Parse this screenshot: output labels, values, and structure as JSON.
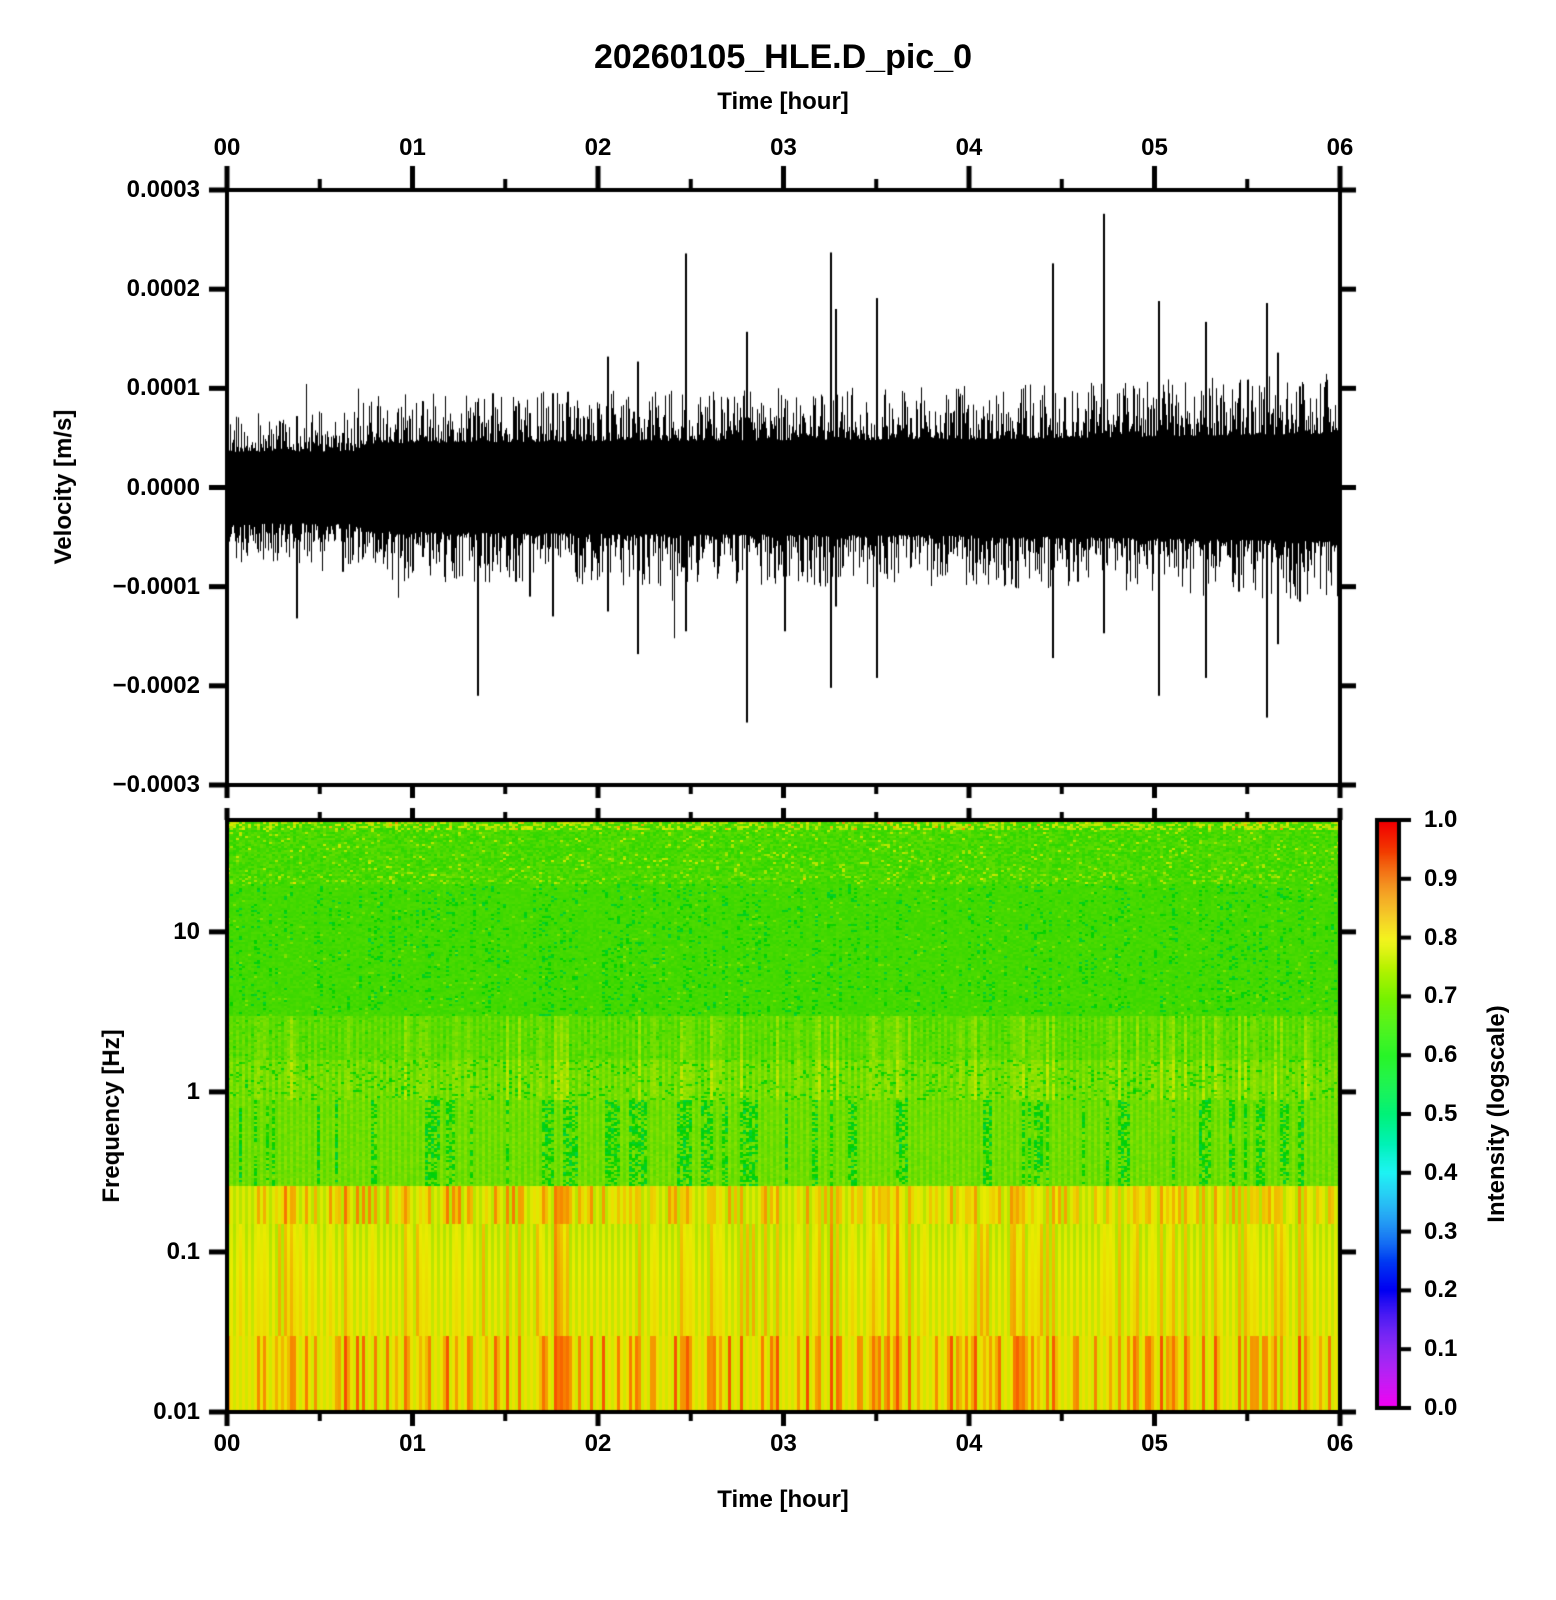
{
  "title": "20260105_HLE.D_pic_0",
  "waveform_plot": {
    "top_axis_title": "Time [hour]",
    "ylabel": "Velocity [m/s]",
    "x_ticks": [
      "00",
      "01",
      "02",
      "03",
      "04",
      "05",
      "06"
    ],
    "y_ticks": [
      "0.0003",
      "0.0002",
      "0.0001",
      "0.0000",
      "−0.0001",
      "−0.0002",
      "−0.0003"
    ]
  },
  "spectrogram_plot": {
    "xlabel": "Time [hour]",
    "ylabel": "Frequency [Hz]",
    "x_ticks": [
      "00",
      "01",
      "02",
      "03",
      "04",
      "05",
      "06"
    ],
    "y_ticks": [
      "10",
      "1",
      "0.1",
      "0.01"
    ]
  },
  "colorbar": {
    "label": "Intensity (logscale)",
    "ticks": [
      "1.0",
      "0.9",
      "0.8",
      "0.7",
      "0.6",
      "0.5",
      "0.4",
      "0.3",
      "0.2",
      "0.1",
      "0.0"
    ],
    "colormap_stops": [
      "#ff00ff",
      "#0000ff",
      "#00ffff",
      "#00ff00",
      "#ffff00",
      "#ff0000"
    ]
  },
  "chart_data": [
    {
      "type": "line",
      "title": "20260105_HLE.D_pic_0",
      "xlabel": "Time [hour]",
      "ylabel": "Velocity [m/s]",
      "xlim_hours": [
        0,
        6
      ],
      "ylim": [
        -0.0003,
        0.0003
      ],
      "x_tick_labels": [
        "00",
        "01",
        "02",
        "03",
        "04",
        "05",
        "06"
      ],
      "y_tick_values": [
        0.0003,
        0.0002,
        0.0001,
        0.0,
        -0.0001,
        -0.0002,
        -0.0003
      ],
      "line_color": "#000000",
      "description": "Continuous broadband seismic noise band of roughly ±0.00005 m/s with many short transient spikes up to ±0.00028 m/s",
      "noise_envelope_1e4": [
        [
          0,
          0.42
        ],
        [
          0.68,
          0.43
        ],
        [
          0.75,
          0.52
        ],
        [
          2.0,
          0.55
        ],
        [
          4.0,
          0.57
        ],
        [
          6.0,
          0.64
        ]
      ],
      "spikes_1e4": [
        [
          0.37,
          0.72,
          -1.32
        ],
        [
          0.62,
          0.55,
          -0.85
        ],
        [
          1.05,
          0.62,
          -0.7
        ],
        [
          1.35,
          0.5,
          -2.1
        ],
        [
          1.43,
          0.95,
          -0.75
        ],
        [
          1.55,
          0.82,
          -0.95
        ],
        [
          1.63,
          0.75,
          -1.1
        ],
        [
          1.75,
          0.95,
          -1.3
        ],
        [
          1.88,
          0.7,
          -0.9
        ],
        [
          2.05,
          1.32,
          -1.25
        ],
        [
          2.21,
          1.27,
          -1.68
        ],
        [
          2.47,
          2.36,
          -1.45
        ],
        [
          2.62,
          0.88,
          -0.75
        ],
        [
          2.8,
          1.57,
          -2.37
        ],
        [
          3.0,
          0.8,
          -1.45
        ],
        [
          3.1,
          0.72,
          -0.85
        ],
        [
          3.25,
          2.37,
          -2.02
        ],
        [
          3.28,
          1.8,
          -1.2
        ],
        [
          3.5,
          1.91,
          -1.92
        ],
        [
          3.68,
          0.7,
          -0.8
        ],
        [
          3.9,
          0.75,
          -0.65
        ],
        [
          4.1,
          0.68,
          -0.78
        ],
        [
          4.45,
          2.26,
          -1.72
        ],
        [
          4.58,
          0.8,
          -0.95
        ],
        [
          4.72,
          2.76,
          -1.47
        ],
        [
          5.02,
          1.88,
          -2.1
        ],
        [
          5.27,
          1.67,
          -1.92
        ],
        [
          5.45,
          0.9,
          -1.05
        ],
        [
          5.6,
          1.86,
          -2.32
        ],
        [
          5.66,
          1.36,
          -1.58
        ],
        [
          5.78,
          1.02,
          -1.15
        ]
      ]
    },
    {
      "type": "heatmap",
      "xlabel": "Time [hour]",
      "ylabel": "Frequency [Hz]",
      "x_range_hours": [
        0,
        6
      ],
      "y_range_hz": [
        0.01,
        50
      ],
      "y_scale": "log",
      "y_tick_values": [
        10,
        1,
        0.1,
        0.01
      ],
      "intensity_range": [
        0.0,
        1.0
      ],
      "colorbar_label": "Intensity (logscale)",
      "colormap": "rainbow: magenta(0.0) - blue(0.2) - cyan(0.4) - green(0.6) - yellow(0.8) - red(1.0)",
      "bands": [
        {
          "id": "top",
          "f": [
            20,
            50
          ],
          "intensity": 0.665,
          "texture": "green, fine speckle with yellow-dotted rows near top edge"
        },
        {
          "id": "green",
          "f": [
            3,
            20
          ],
          "intensity": 0.662,
          "texture": "green with sparse dark-green speckle streaks"
        },
        {
          "id": "stripes-a",
          "f": [
            1.6,
            3
          ],
          "intensity": 0.685,
          "texture": "yellow-green fine vertical striping"
        },
        {
          "id": "stripes-b",
          "f": [
            0.9,
            1.6
          ],
          "intensity": 0.705,
          "texture": "yellow-green striping with darker dots"
        },
        {
          "id": "blobs",
          "f": [
            0.26,
            0.9
          ],
          "intensity": 0.7,
          "texture": "dark-green vertical smears on yellow-green"
        },
        {
          "id": "microseism",
          "f": [
            0.15,
            0.26
          ],
          "intensity": 0.775,
          "texture": "yellow-orange band with red vertical stripes, strongest before hour 2"
        },
        {
          "id": "striped-yellow",
          "f": [
            0.03,
            0.15
          ],
          "intensity": 0.77,
          "texture": "yellow with fine vertical stripes"
        },
        {
          "id": "bottom-red",
          "f": [
            0.01,
            0.03
          ],
          "intensity": 0.795,
          "texture": "yellow with orange-red vertical stripes"
        }
      ]
    }
  ]
}
